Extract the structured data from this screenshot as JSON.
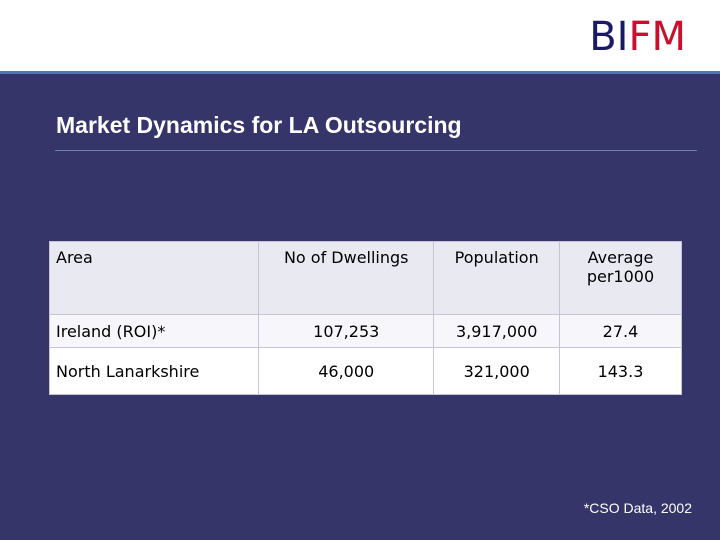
{
  "logo": {
    "part1": "BI",
    "part2": "FM"
  },
  "slide": {
    "title": "Market Dynamics for LA Outsourcing"
  },
  "table": {
    "headers": [
      "Area",
      "No of Dwellings",
      "Population",
      "Average per1000"
    ],
    "rows": [
      [
        "Ireland (ROI)*",
        "107,253",
        "3,917,000",
        "27.4"
      ],
      [
        "North Lanarkshire",
        "46,000",
        "321,000",
        "143.3"
      ]
    ]
  },
  "footnote": "*CSO Data, 2002",
  "colors": {
    "background": "#35356a",
    "logo_bi": "#1a1a66",
    "logo_fm": "#c8102e",
    "accent_rule": "#4f74b8"
  }
}
